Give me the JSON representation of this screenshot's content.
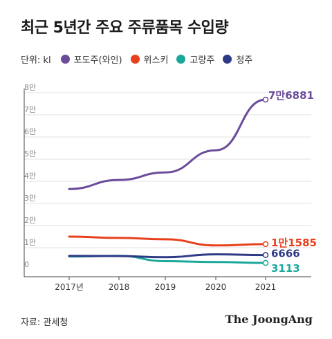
{
  "title": "최근 5년간 주요 주류품목 수입량",
  "unit_label": "단위: kl",
  "source": "자료: 관세청",
  "brand": "The JoongAng",
  "chart_data": {
    "type": "line",
    "categories": [
      "2017년",
      "2018",
      "2019",
      "2020",
      "2021"
    ],
    "y_ticks": [
      {
        "value": 0,
        "label": "0"
      },
      {
        "value": 10000,
        "label": "1만"
      },
      {
        "value": 20000,
        "label": "2만"
      },
      {
        "value": 30000,
        "label": "3만"
      },
      {
        "value": 40000,
        "label": "4만"
      },
      {
        "value": 50000,
        "label": "5만"
      },
      {
        "value": 60000,
        "label": "6만"
      },
      {
        "value": 70000,
        "label": "7만"
      },
      {
        "value": 80000,
        "label": "8만"
      }
    ],
    "ylim": [
      0,
      80000
    ],
    "series": [
      {
        "name": "포도주(와인)",
        "color": "#6b4c9a",
        "values": [
          36500,
          40600,
          44000,
          54000,
          76881
        ],
        "end_label": "7만6881"
      },
      {
        "name": "위스키",
        "color": "#e8401c",
        "values": [
          15000,
          14400,
          13800,
          11000,
          11585
        ],
        "end_label": "1만1585"
      },
      {
        "name": "고량주",
        "color": "#1aa89a",
        "values": [
          6000,
          6300,
          3900,
          3500,
          3113
        ],
        "end_label": "3113"
      },
      {
        "name": "청주",
        "color": "#2e3a86",
        "values": [
          6300,
          6200,
          5700,
          7000,
          6666
        ],
        "end_label": "6666"
      }
    ]
  }
}
